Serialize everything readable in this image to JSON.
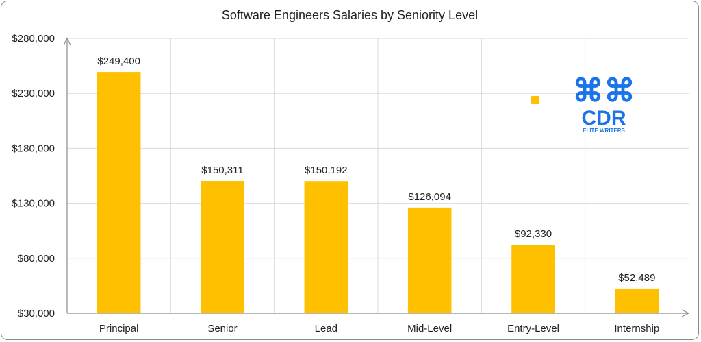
{
  "chart_data": {
    "type": "bar",
    "title": "Software Engineers Salaries by Seniority Level",
    "categories": [
      "Principal",
      "Senior",
      "Lead",
      "Mid-Level",
      "Entry-Level",
      "Internship"
    ],
    "values": [
      249400,
      150311,
      150192,
      126094,
      92330,
      52489
    ],
    "data_labels": [
      "$249,400",
      "$150,311",
      "$150,192",
      "$126,094",
      "$92,330",
      "$52,489"
    ],
    "y_ticks": [
      30000,
      80000,
      130000,
      180000,
      230000,
      280000
    ],
    "y_tick_labels": [
      "$30,000",
      "$80,000",
      "$130,000",
      "$180,000",
      "$230,000",
      "$280,000"
    ],
    "ylim": [
      30000,
      280000
    ],
    "xlabel": "",
    "ylabel": "",
    "grid": true,
    "legend": "none",
    "colors": {
      "bar": "#FFC000",
      "grid": "#d9d9d9",
      "axis": "#8c8c8c",
      "logo": "#1a73e8"
    }
  },
  "logo": {
    "mark": "⌘⌘",
    "text": "CDR",
    "subtext": "ELITE WRITERS"
  }
}
